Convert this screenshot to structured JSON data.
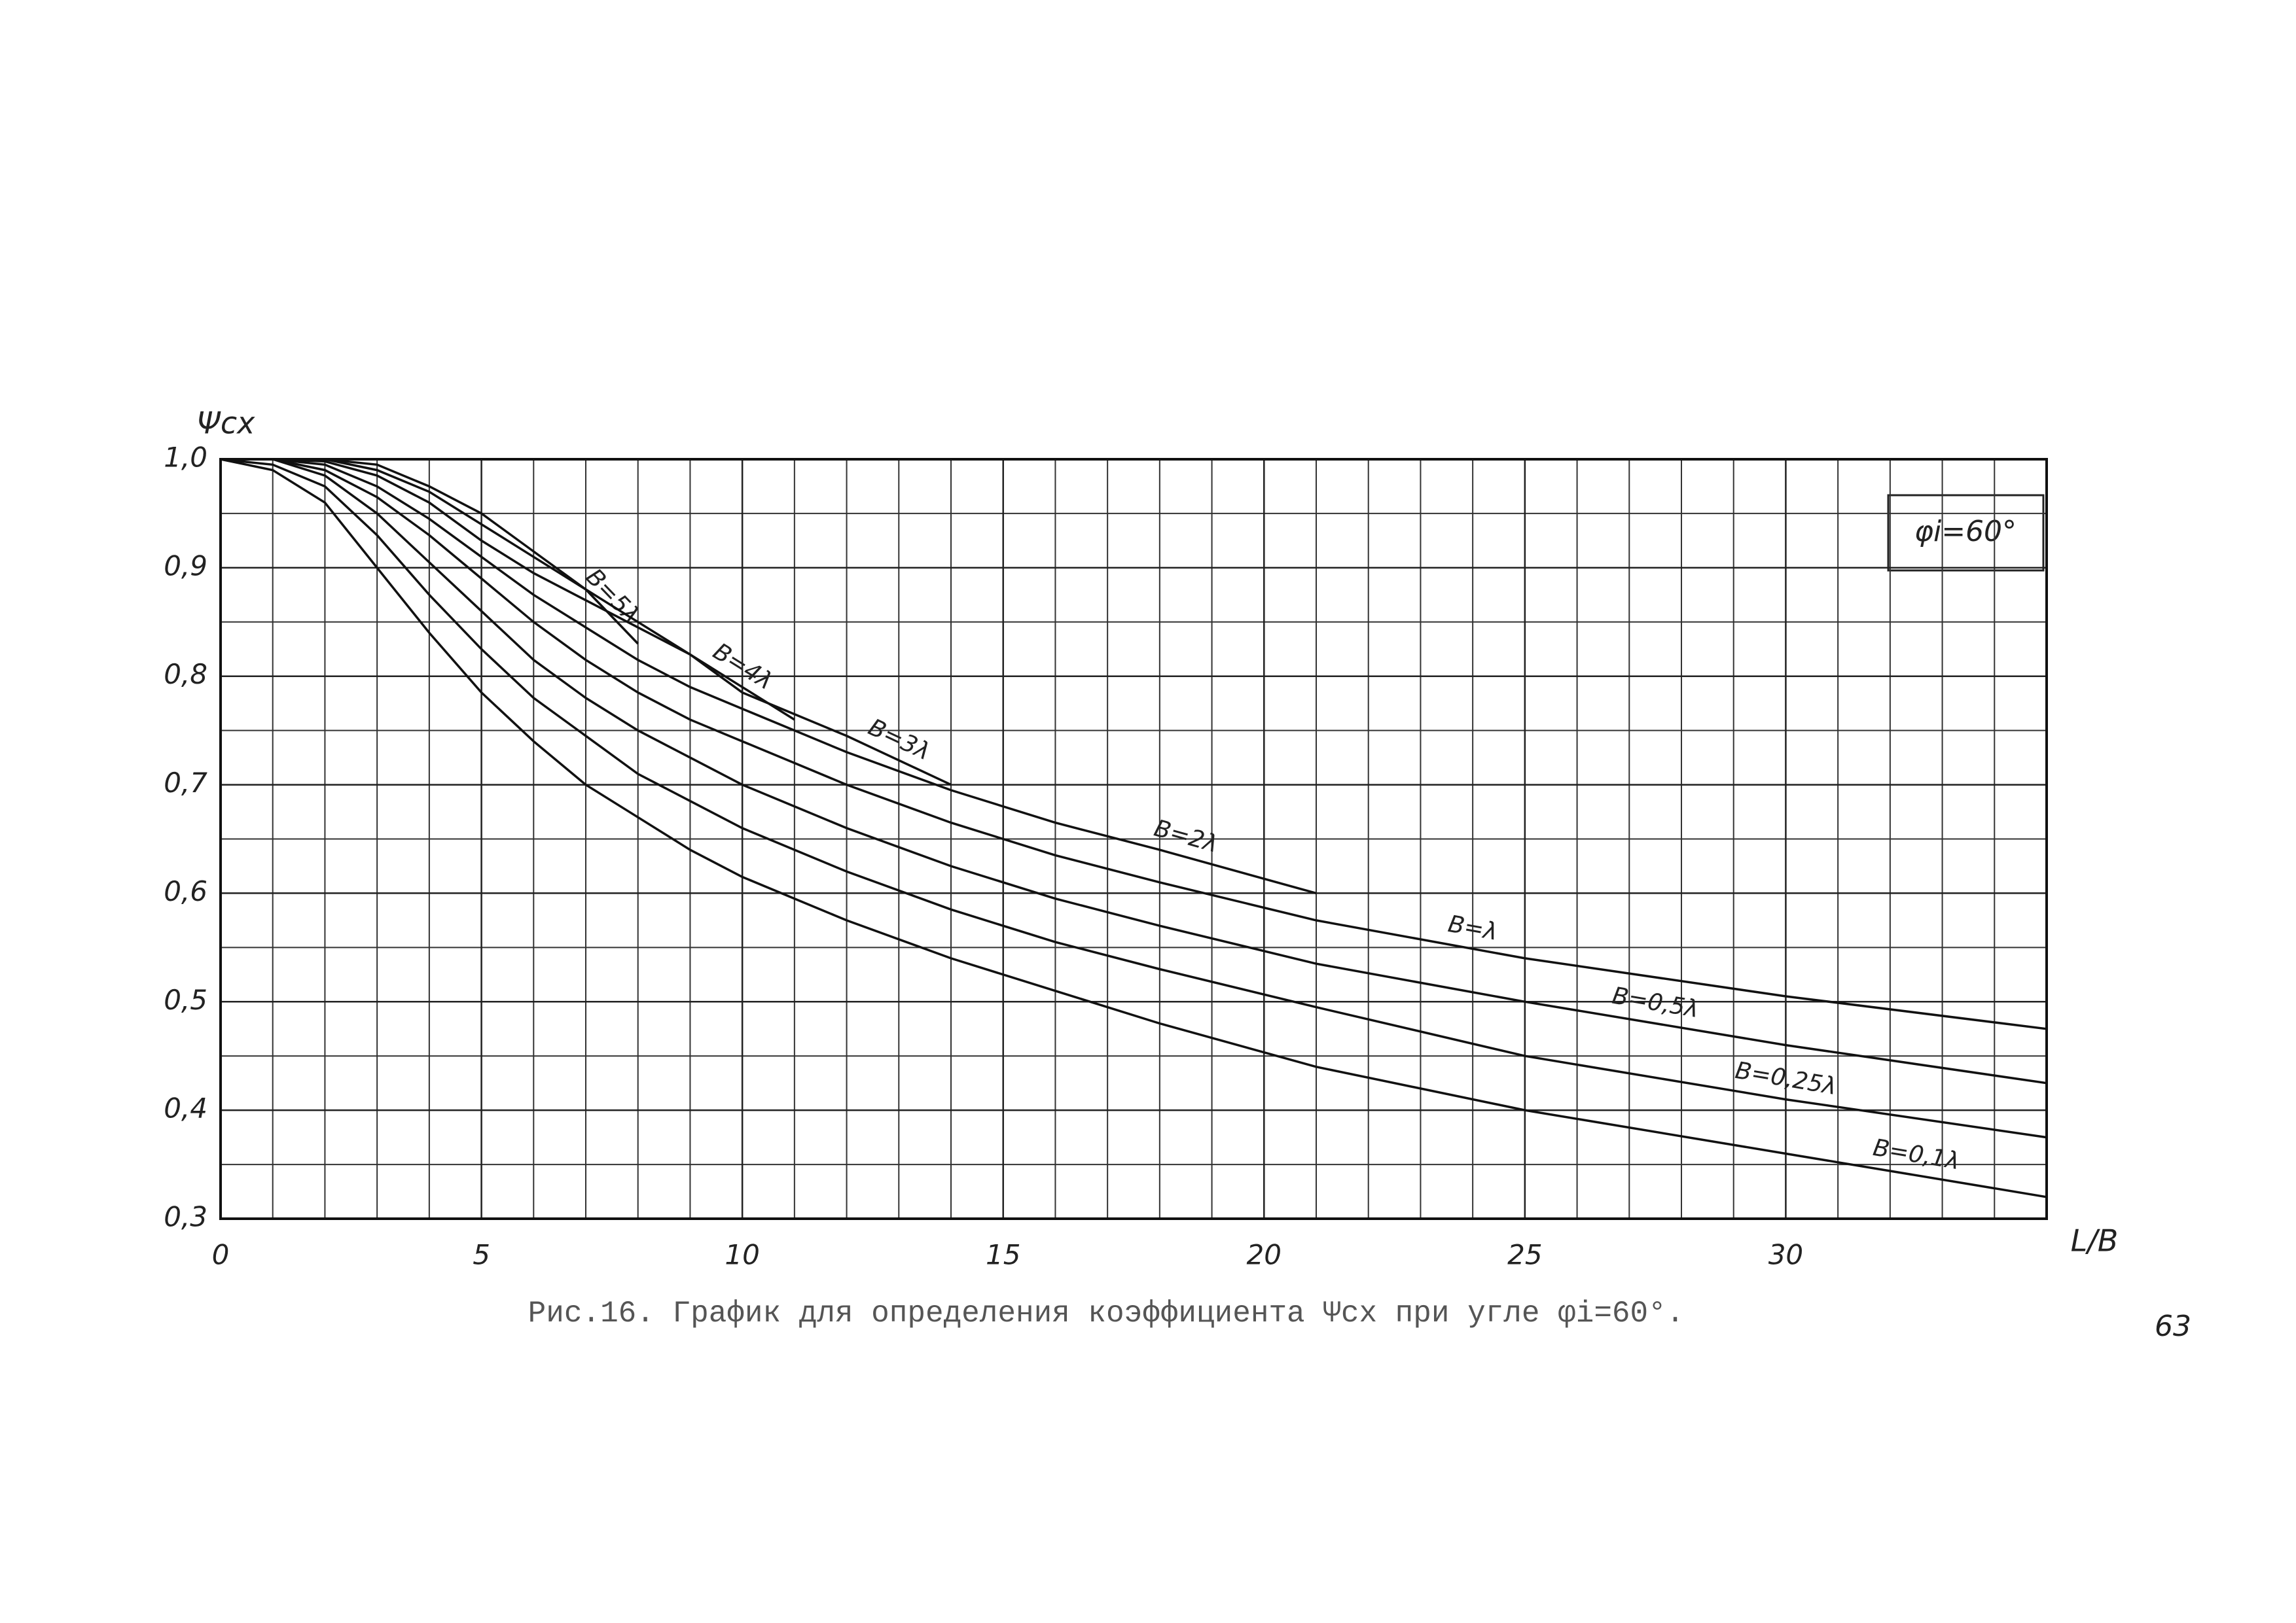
{
  "chart_data": {
    "type": "line",
    "y_label": "Ψcx",
    "x_label": "L/B",
    "annotation": "φi=60°",
    "caption": "Рис.16. График для определения коэффициента Ψcx при угле φi=60°.",
    "page_number": "63",
    "color": "#111111",
    "grid": true,
    "xlim": [
      0,
      35
    ],
    "ylim": [
      0.3,
      1.0
    ],
    "xticks": [
      0,
      5,
      10,
      15,
      20,
      25,
      30
    ],
    "yticks": [
      {
        "value": 0.3,
        "label": "0,3"
      },
      {
        "value": 0.4,
        "label": "0,4"
      },
      {
        "value": 0.5,
        "label": "0,5"
      },
      {
        "value": 0.6,
        "label": "0,6"
      },
      {
        "value": 0.7,
        "label": "0,7"
      },
      {
        "value": 0.8,
        "label": "0,8"
      },
      {
        "value": 0.9,
        "label": "0,9"
      },
      {
        "value": 1.0,
        "label": "1,0"
      }
    ],
    "x": [
      0,
      1,
      2,
      3,
      4,
      5,
      6,
      7,
      8,
      9,
      10,
      11,
      12,
      14,
      16,
      18,
      21,
      25,
      30,
      35
    ],
    "series": [
      {
        "name": "B=5λ",
        "values": [
          1.0,
          1.0,
          1.0,
          0.995,
          0.975,
          0.95,
          0.915,
          0.88,
          0.83,
          null,
          null,
          null,
          null,
          null,
          null,
          null,
          null,
          null,
          null,
          null
        ]
      },
      {
        "name": "B=4λ",
        "values": [
          1.0,
          1.0,
          1.0,
          0.99,
          0.97,
          0.94,
          0.91,
          0.88,
          0.85,
          0.82,
          0.79,
          0.76,
          null,
          null,
          null,
          null,
          null,
          null,
          null,
          null
        ]
      },
      {
        "name": "B=3λ",
        "values": [
          1.0,
          1.0,
          0.998,
          0.985,
          0.96,
          0.925,
          0.895,
          0.87,
          0.845,
          0.82,
          0.785,
          0.765,
          0.745,
          0.7,
          null,
          null,
          null,
          null,
          null,
          null
        ]
      },
      {
        "name": "B=2λ",
        "values": [
          1.0,
          1.0,
          0.995,
          0.975,
          0.945,
          0.91,
          0.875,
          0.845,
          0.815,
          0.79,
          0.77,
          0.75,
          0.73,
          0.695,
          0.665,
          0.64,
          0.6,
          null,
          null,
          null
        ]
      },
      {
        "name": "B=λ",
        "values": [
          1.0,
          1.0,
          0.99,
          0.965,
          0.93,
          0.89,
          0.85,
          0.815,
          0.785,
          0.76,
          0.74,
          0.72,
          0.7,
          0.665,
          0.635,
          0.61,
          0.575,
          0.54,
          0.505,
          0.475
        ]
      },
      {
        "name": "B=0,5λ",
        "values": [
          1.0,
          1.0,
          0.985,
          0.95,
          0.905,
          0.86,
          0.815,
          0.78,
          0.75,
          0.725,
          0.7,
          0.68,
          0.66,
          0.625,
          0.595,
          0.57,
          0.535,
          0.5,
          0.46,
          0.425
        ]
      },
      {
        "name": "B=0,25λ",
        "values": [
          1.0,
          0.995,
          0.975,
          0.93,
          0.875,
          0.825,
          0.78,
          0.745,
          0.71,
          0.685,
          0.66,
          0.64,
          0.62,
          0.585,
          0.555,
          0.53,
          0.495,
          0.45,
          0.41,
          0.375
        ]
      },
      {
        "name": "B=0,1λ",
        "values": [
          1.0,
          0.99,
          0.96,
          0.9,
          0.84,
          0.785,
          0.74,
          0.7,
          0.67,
          0.64,
          0.615,
          0.595,
          0.575,
          0.54,
          0.51,
          0.48,
          0.44,
          0.4,
          0.36,
          0.32
        ]
      }
    ]
  }
}
